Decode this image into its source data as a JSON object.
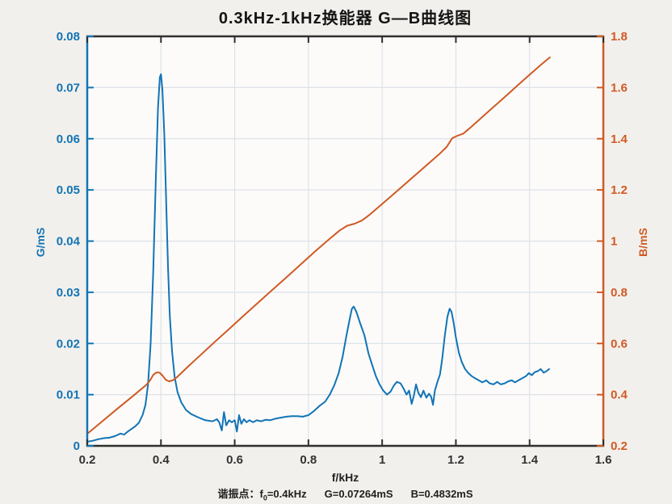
{
  "figure": {
    "annotation": {
      "label": "谐振点：",
      "f_symbol": "f",
      "f_sub": "0",
      "f_value": "=0.4kHz",
      "g_value": "G=0.07264mS",
      "b_value": "B=0.4832mS"
    }
  },
  "chart_data": {
    "type": "line",
    "title": "0.3kHz-1kHz换能器 G—B曲线图",
    "xlabel": "f/kHz",
    "ylabel_left": "G/mS",
    "ylabel_right": "B/mS",
    "x_range": [
      0.2,
      1.6
    ],
    "y_left_range": [
      0,
      0.08
    ],
    "y_right_range": [
      0.2,
      1.8
    ],
    "grid": true,
    "x_ticks": {
      "values": [
        0.2,
        0.4,
        0.6,
        0.8,
        1.0,
        1.2,
        1.4,
        1.6
      ],
      "labels": [
        "0.2",
        "0.4",
        "0.6",
        "0.8",
        "1",
        "1.2",
        "1.4",
        "1.6"
      ]
    },
    "y_left_ticks": {
      "values": [
        0,
        0.01,
        0.02,
        0.03,
        0.04,
        0.05,
        0.06,
        0.07,
        0.08
      ],
      "labels": [
        "0",
        "0.01",
        "0.02",
        "0.03",
        "0.04",
        "0.05",
        "0.06",
        "0.07",
        "0.08"
      ]
    },
    "y_right_ticks": {
      "values": [
        0.2,
        0.4,
        0.6,
        0.8,
        1.0,
        1.2,
        1.4,
        1.6,
        1.8
      ],
      "labels": [
        "0.2",
        "0.4",
        "0.6",
        "0.8",
        "1",
        "1.2",
        "1.4",
        "1.6",
        "1.8"
      ]
    },
    "colors": {
      "g_series": "#1274b6",
      "b_series": "#d05a24",
      "axis": "#2f2f2f",
      "grid": "#dde2e7",
      "plot_bg": "#fcfbfa"
    },
    "resonance": {
      "f0_kHz": 0.4,
      "G_mS": 0.07264,
      "B_mS": 0.4832
    },
    "series": [
      {
        "name": "G",
        "axis": "left",
        "color": "#1274b6",
        "points": [
          [
            0.2,
            0.0008
          ],
          [
            0.215,
            0.001
          ],
          [
            0.23,
            0.0013
          ],
          [
            0.245,
            0.0015
          ],
          [
            0.26,
            0.0016
          ],
          [
            0.275,
            0.0019
          ],
          [
            0.29,
            0.0024
          ],
          [
            0.3,
            0.0022
          ],
          [
            0.31,
            0.0028
          ],
          [
            0.32,
            0.0033
          ],
          [
            0.33,
            0.0038
          ],
          [
            0.34,
            0.0045
          ],
          [
            0.35,
            0.006
          ],
          [
            0.358,
            0.008
          ],
          [
            0.365,
            0.012
          ],
          [
            0.372,
            0.02
          ],
          [
            0.379,
            0.034
          ],
          [
            0.386,
            0.052
          ],
          [
            0.392,
            0.066
          ],
          [
            0.397,
            0.072
          ],
          [
            0.4,
            0.0726
          ],
          [
            0.404,
            0.0695
          ],
          [
            0.409,
            0.061
          ],
          [
            0.414,
            0.048
          ],
          [
            0.419,
            0.035
          ],
          [
            0.424,
            0.0255
          ],
          [
            0.43,
            0.0185
          ],
          [
            0.437,
            0.0135
          ],
          [
            0.445,
            0.0105
          ],
          [
            0.455,
            0.0085
          ],
          [
            0.468,
            0.007
          ],
          [
            0.482,
            0.0062
          ],
          [
            0.5,
            0.0056
          ],
          [
            0.52,
            0.005
          ],
          [
            0.54,
            0.0048
          ],
          [
            0.552,
            0.0052
          ],
          [
            0.558,
            0.0046
          ],
          [
            0.565,
            0.003
          ],
          [
            0.571,
            0.0066
          ],
          [
            0.577,
            0.004
          ],
          [
            0.585,
            0.005
          ],
          [
            0.592,
            0.0046
          ],
          [
            0.6,
            0.005
          ],
          [
            0.606,
            0.0028
          ],
          [
            0.612,
            0.006
          ],
          [
            0.618,
            0.0043
          ],
          [
            0.625,
            0.0052
          ],
          [
            0.632,
            0.0046
          ],
          [
            0.64,
            0.005
          ],
          [
            0.65,
            0.0046
          ],
          [
            0.66,
            0.005
          ],
          [
            0.672,
            0.0048
          ],
          [
            0.684,
            0.0051
          ],
          [
            0.696,
            0.005
          ],
          [
            0.71,
            0.0053
          ],
          [
            0.725,
            0.0055
          ],
          [
            0.74,
            0.0057
          ],
          [
            0.755,
            0.0058
          ],
          [
            0.77,
            0.0058
          ],
          [
            0.785,
            0.0057
          ],
          [
            0.8,
            0.006
          ],
          [
            0.815,
            0.0068
          ],
          [
            0.83,
            0.0078
          ],
          [
            0.845,
            0.0086
          ],
          [
            0.858,
            0.01
          ],
          [
            0.87,
            0.0118
          ],
          [
            0.882,
            0.0142
          ],
          [
            0.893,
            0.0175
          ],
          [
            0.903,
            0.0215
          ],
          [
            0.912,
            0.0248
          ],
          [
            0.918,
            0.0268
          ],
          [
            0.923,
            0.0272
          ],
          [
            0.93,
            0.0262
          ],
          [
            0.94,
            0.024
          ],
          [
            0.952,
            0.0216
          ],
          [
            0.963,
            0.018
          ],
          [
            0.973,
            0.0158
          ],
          [
            0.983,
            0.0136
          ],
          [
            0.993,
            0.012
          ],
          [
            1.003,
            0.0108
          ],
          [
            1.013,
            0.01
          ],
          [
            1.023,
            0.0106
          ],
          [
            1.032,
            0.0118
          ],
          [
            1.04,
            0.0125
          ],
          [
            1.05,
            0.0122
          ],
          [
            1.058,
            0.0112
          ],
          [
            1.066,
            0.01
          ],
          [
            1.073,
            0.0108
          ],
          [
            1.08,
            0.0082
          ],
          [
            1.086,
            0.0098
          ],
          [
            1.092,
            0.012
          ],
          [
            1.098,
            0.0104
          ],
          [
            1.105,
            0.0095
          ],
          [
            1.112,
            0.0108
          ],
          [
            1.12,
            0.0094
          ],
          [
            1.127,
            0.0102
          ],
          [
            1.133,
            0.0096
          ],
          [
            1.138,
            0.008
          ],
          [
            1.143,
            0.0108
          ],
          [
            1.15,
            0.0125
          ],
          [
            1.157,
            0.014
          ],
          [
            1.163,
            0.017
          ],
          [
            1.17,
            0.0215
          ],
          [
            1.177,
            0.0252
          ],
          [
            1.183,
            0.0268
          ],
          [
            1.188,
            0.0262
          ],
          [
            1.194,
            0.024
          ],
          [
            1.2,
            0.0212
          ],
          [
            1.208,
            0.0182
          ],
          [
            1.216,
            0.0164
          ],
          [
            1.225,
            0.015
          ],
          [
            1.234,
            0.0142
          ],
          [
            1.243,
            0.0136
          ],
          [
            1.252,
            0.0132
          ],
          [
            1.262,
            0.0128
          ],
          [
            1.272,
            0.0124
          ],
          [
            1.282,
            0.0128
          ],
          [
            1.292,
            0.0122
          ],
          [
            1.302,
            0.012
          ],
          [
            1.312,
            0.0125
          ],
          [
            1.322,
            0.012
          ],
          [
            1.332,
            0.0122
          ],
          [
            1.342,
            0.0126
          ],
          [
            1.352,
            0.0128
          ],
          [
            1.36,
            0.0124
          ],
          [
            1.37,
            0.0128
          ],
          [
            1.38,
            0.0132
          ],
          [
            1.39,
            0.0136
          ],
          [
            1.398,
            0.0142
          ],
          [
            1.406,
            0.0138
          ],
          [
            1.414,
            0.0144
          ],
          [
            1.422,
            0.0146
          ],
          [
            1.43,
            0.015
          ],
          [
            1.438,
            0.0143
          ],
          [
            1.446,
            0.0146
          ],
          [
            1.453,
            0.015
          ]
        ]
      },
      {
        "name": "B",
        "axis": "right",
        "color": "#d05a24",
        "points": [
          [
            0.2,
            0.247
          ],
          [
            0.24,
            0.295
          ],
          [
            0.28,
            0.343
          ],
          [
            0.32,
            0.39
          ],
          [
            0.345,
            0.42
          ],
          [
            0.36,
            0.438
          ],
          [
            0.37,
            0.455
          ],
          [
            0.379,
            0.477
          ],
          [
            0.388,
            0.487
          ],
          [
            0.396,
            0.486
          ],
          [
            0.404,
            0.475
          ],
          [
            0.413,
            0.458
          ],
          [
            0.422,
            0.452
          ],
          [
            0.432,
            0.456
          ],
          [
            0.443,
            0.468
          ],
          [
            0.455,
            0.484
          ],
          [
            0.47,
            0.505
          ],
          [
            0.49,
            0.532
          ],
          [
            0.515,
            0.565
          ],
          [
            0.545,
            0.605
          ],
          [
            0.58,
            0.65
          ],
          [
            0.62,
            0.703
          ],
          [
            0.66,
            0.755
          ],
          [
            0.7,
            0.807
          ],
          [
            0.74,
            0.858
          ],
          [
            0.78,
            0.91
          ],
          [
            0.82,
            0.962
          ],
          [
            0.855,
            1.006
          ],
          [
            0.885,
            1.042
          ],
          [
            0.905,
            1.06
          ],
          [
            0.925,
            1.068
          ],
          [
            0.945,
            1.08
          ],
          [
            0.965,
            1.102
          ],
          [
            0.99,
            1.133
          ],
          [
            1.02,
            1.17
          ],
          [
            1.055,
            1.214
          ],
          [
            1.09,
            1.258
          ],
          [
            1.125,
            1.302
          ],
          [
            1.155,
            1.34
          ],
          [
            1.175,
            1.368
          ],
          [
            1.19,
            1.402
          ],
          [
            1.205,
            1.412
          ],
          [
            1.22,
            1.42
          ],
          [
            1.235,
            1.438
          ],
          [
            1.26,
            1.47
          ],
          [
            1.295,
            1.515
          ],
          [
            1.33,
            1.56
          ],
          [
            1.365,
            1.605
          ],
          [
            1.4,
            1.65
          ],
          [
            1.43,
            1.688
          ],
          [
            1.455,
            1.718
          ]
        ]
      }
    ]
  }
}
